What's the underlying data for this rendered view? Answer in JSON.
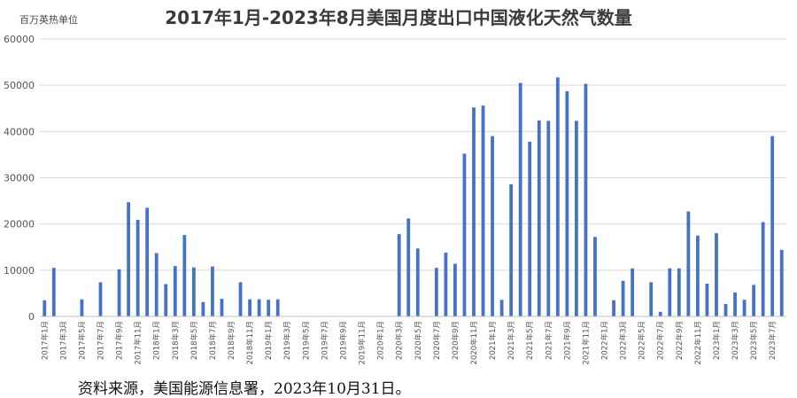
{
  "chart_data": {
    "type": "bar",
    "title": "2017年1月-2023年8月美国月度出口中国液化天然气数量",
    "unit_label": "百万英热单位",
    "xlabel": "",
    "ylabel": "",
    "ylim": [
      0,
      60000
    ],
    "yticks": [
      "0",
      "10000",
      "20000",
      "30000",
      "40000",
      "50000",
      "60000"
    ],
    "grid": true,
    "bar_color": "#4472C4",
    "categories": [
      "2017年1月",
      "2017年2月",
      "2017年3月",
      "2017年4月",
      "2017年5月",
      "2017年6月",
      "2017年7月",
      "2017年8月",
      "2017年9月",
      "2017年10月",
      "2017年11月",
      "2017年12月",
      "2018年1月",
      "2018年2月",
      "2018年3月",
      "2018年4月",
      "2018年5月",
      "2018年6月",
      "2018年7月",
      "2018年8月",
      "2018年9月",
      "2018年10月",
      "2018年11月",
      "2018年12月",
      "2019年1月",
      "2019年2月",
      "2019年3月",
      "2019年4月",
      "2019年5月",
      "2019年6月",
      "2019年7月",
      "2019年8月",
      "2019年9月",
      "2019年10月",
      "2019年11月",
      "2019年12月",
      "2020年1月",
      "2020年2月",
      "2020年3月",
      "2020年4月",
      "2020年5月",
      "2020年6月",
      "2020年7月",
      "2020年8月",
      "2020年9月",
      "2020年10月",
      "2020年11月",
      "2020年12月",
      "2021年1月",
      "2021年2月",
      "2021年3月",
      "2021年4月",
      "2021年5月",
      "2021年6月",
      "2021年7月",
      "2021年8月",
      "2021年9月",
      "2021年10月",
      "2021年11月",
      "2021年12月",
      "2022年1月",
      "2022年2月",
      "2022年3月",
      "2022年4月",
      "2022年5月",
      "2022年6月",
      "2022年7月",
      "2022年8月",
      "2022年9月",
      "2022年10月",
      "2022年11月",
      "2022年12月",
      "2023年1月",
      "2023年2月",
      "2023年3月",
      "2023年4月",
      "2023年5月",
      "2023年6月",
      "2023年7月",
      "2023年8月"
    ],
    "tick_labels": [
      "2017年1月",
      "2017年3月",
      "2017年5月",
      "2017年7月",
      "2017年9月",
      "2017年11月",
      "2018年1月",
      "2018年3月",
      "2018年5月",
      "2018年7月",
      "2018年9月",
      "2018年11月",
      "2019年1月",
      "2019年3月",
      "2019年5月",
      "2019年7月",
      "2019年9月",
      "2019年11月",
      "2020年1月",
      "2020年3月",
      "2020年5月",
      "2020年7月",
      "2020年9月",
      "2020年11月",
      "2021年1月",
      "2021年3月",
      "2021年5月",
      "2021年7月",
      "2021年9月",
      "2021年11月",
      "2022年1月",
      "2022年3月",
      "2022年5月",
      "2022年7月",
      "2022年9月",
      "2022年11月",
      "2023年1月",
      "2023年3月",
      "2023年5月",
      "2023年7月"
    ],
    "values": [
      3500,
      10500,
      0,
      0,
      3700,
      0,
      7400,
      0,
      10200,
      24700,
      20900,
      23500,
      13700,
      7000,
      10900,
      17600,
      10600,
      3100,
      10800,
      3800,
      0,
      7400,
      3700,
      3700,
      3600,
      3700,
      0,
      0,
      0,
      0,
      0,
      0,
      0,
      0,
      0,
      0,
      0,
      0,
      17800,
      21200,
      14700,
      0,
      10500,
      13800,
      11400,
      35200,
      45200,
      45600,
      39000,
      3600,
      28600,
      50500,
      37800,
      42400,
      42300,
      51700,
      48700,
      42300,
      50300,
      17200,
      0,
      3500,
      7700,
      10400,
      0,
      7400,
      1000,
      10400,
      10400,
      22700,
      17500,
      7100,
      18000,
      2700,
      5200,
      3600,
      6800,
      20400,
      39000,
      14400
    ]
  },
  "source_note": "资料来源，美国能源信息署，2023年10月31日。"
}
